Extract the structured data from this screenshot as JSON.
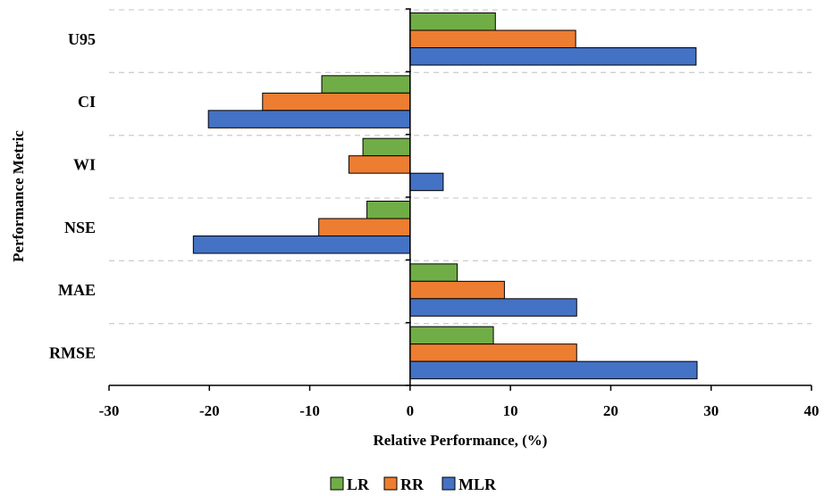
{
  "chart_data": {
    "type": "bar",
    "orientation": "horizontal",
    "categories": [
      "U95",
      "CI",
      "WI",
      "NSE",
      "MAE",
      "RMSE"
    ],
    "series": [
      {
        "name": "LR",
        "color": "#70ad47",
        "values": [
          8.5,
          -8.8,
          -4.7,
          -4.3,
          4.7,
          8.3
        ]
      },
      {
        "name": "RR",
        "color": "#ed7d31",
        "values": [
          16.5,
          -14.7,
          -6.1,
          -9.1,
          9.4,
          16.6
        ]
      },
      {
        "name": "MLR",
        "color": "#4472c4",
        "values": [
          28.5,
          -20.1,
          3.3,
          -21.6,
          16.6,
          28.6
        ]
      }
    ],
    "xlabel": "Relative Performance, (%)",
    "ylabel": "Performance Metric",
    "xlim": [
      -30,
      40
    ],
    "xticks": [
      "-30",
      "-20",
      "-10",
      "0",
      "10",
      "20",
      "30",
      "40"
    ],
    "grid": "horizontal dashed separators between categories",
    "legend_position": "bottom"
  }
}
